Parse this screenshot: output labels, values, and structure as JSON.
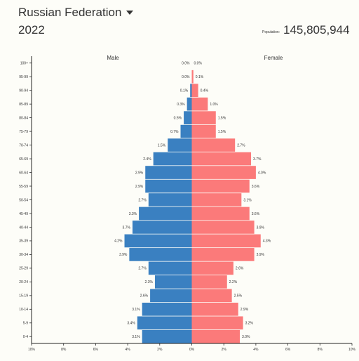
{
  "header": {
    "country": "Russian Federation",
    "year": "2022",
    "population_label": "Population:",
    "population_value": "145,805,944"
  },
  "colors": {
    "male": "#3a80c1",
    "female": "#fb7a7a",
    "background": "#fdfdf8"
  },
  "icons": {
    "dropdown": "caret-down-icon"
  },
  "chart_data": {
    "type": "bar",
    "orientation": "horizontal",
    "subtype": "population-pyramid",
    "categories": [
      "100+",
      "95-99",
      "90-94",
      "85-89",
      "80-84",
      "75-79",
      "70-74",
      "65-69",
      "60-64",
      "55-59",
      "50-54",
      "45-49",
      "40-44",
      "35-39",
      "30-34",
      "25-29",
      "20-24",
      "15-19",
      "10-14",
      "5-9",
      "0-4"
    ],
    "series": [
      {
        "name": "Male",
        "values": [
          0.0,
          0.0,
          0.1,
          0.3,
          0.5,
          0.7,
          1.5,
          2.4,
          2.9,
          2.9,
          2.7,
          3.3,
          3.7,
          4.2,
          3.9,
          2.7,
          2.3,
          2.6,
          3.1,
          3.4,
          3.1
        ],
        "labels": [
          "0.0%",
          "0.0%",
          "0.1%",
          "0.3%",
          "0.5%",
          "0.7%",
          "1.5%",
          "2.4%",
          "2.9%",
          "2.9%",
          "2.7%",
          "3.3%",
          "3.7%",
          "4.2%",
          "3.9%",
          "2.7%",
          "2.3%",
          "2.6%",
          "3.1%",
          "3.4%",
          "3.1%"
        ]
      },
      {
        "name": "Female",
        "values": [
          0.0,
          0.1,
          0.4,
          1.0,
          1.5,
          1.5,
          2.7,
          3.7,
          4.0,
          3.6,
          3.1,
          3.6,
          3.9,
          4.3,
          3.9,
          2.6,
          2.2,
          2.5,
          2.9,
          3.2,
          3.0
        ],
        "labels": [
          "0.0%",
          "0.1%",
          "0.4%",
          "1.0%",
          "1.5%",
          "1.5%",
          "2.7%",
          "3.7%",
          "4.0%",
          "3.6%",
          "3.1%",
          "3.6%",
          "3.9%",
          "4.3%",
          "3.9%",
          "2.6%",
          "2.2%",
          "2.5%",
          "2.9%",
          "3.2%",
          "3.0%"
        ]
      }
    ],
    "xlim": [
      -10,
      10
    ],
    "xticks": [
      -10,
      -8,
      -6,
      -4,
      -2,
      0,
      2,
      4,
      6,
      8,
      10
    ],
    "xtick_labels": [
      "10%",
      "8%",
      "6%",
      "4%",
      "2%",
      "0%",
      "2%",
      "4%",
      "6%",
      "8%",
      "10%"
    ],
    "grid": false,
    "legend": "top"
  }
}
